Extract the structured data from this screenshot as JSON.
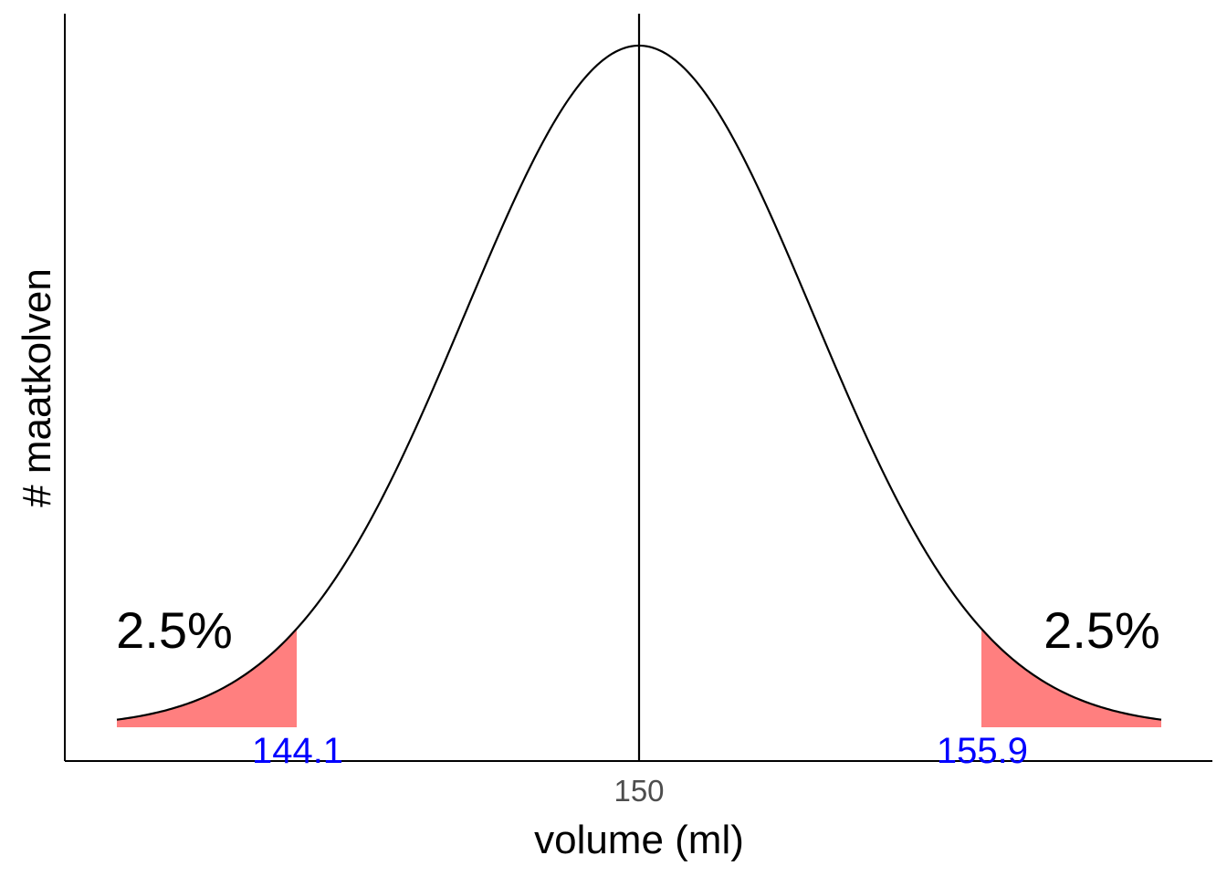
{
  "chart_data": {
    "type": "area",
    "distribution": "normal",
    "mean": 150,
    "sd": 3.0,
    "x_range": [
      141,
      159
    ],
    "xlabel": "volume (ml)",
    "ylabel": "# maatkolven",
    "x_ticks": [
      "150"
    ],
    "y_ticks": [],
    "grid": false,
    "critical_values": [
      {
        "label": "144.1",
        "value": 144.1
      },
      {
        "label": "155.9",
        "value": 155.9
      }
    ],
    "shaded_tails": [
      {
        "side": "left",
        "from": 141,
        "to": 144.1,
        "percent_label": "2.5%"
      },
      {
        "side": "right",
        "from": 155.9,
        "to": 159,
        "percent_label": "2.5%"
      }
    ],
    "colors": {
      "tail_fill": "#ff7f7f",
      "curve": "#000000",
      "critical_label": "#0000ff",
      "tick_label": "#4d4d4d"
    }
  }
}
